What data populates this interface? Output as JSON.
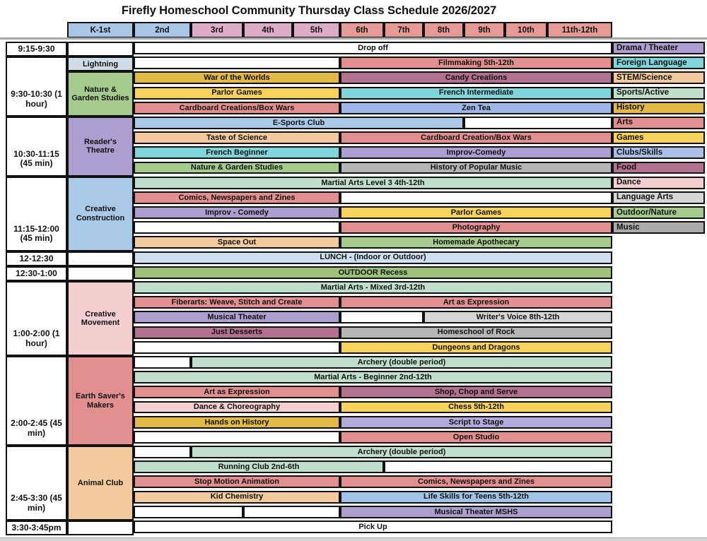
{
  "title": "Firefly Homeschool Community Thursday Class Schedule 2026/2027",
  "colors": {
    "white": "#ffffff",
    "salmon": "#e28f8f",
    "plum": "#b1718f",
    "gold": "#e3ba45",
    "yellow": "#f8d35b",
    "cyan": "#7fd5d9",
    "periwinkle": "#9fb7e8",
    "clubsblue": "#a9bfe8",
    "lightblue": "#aac8e8",
    "skyblue": "#a0c3e8",
    "paleblue": "#cfdff2",
    "mint": "#bfdecb",
    "green": "#a6cb8e",
    "recessgreen": "#9dc17a",
    "purple": "#ad9ed0",
    "lavender": "#b3aadb",
    "peach": "#f3c99e",
    "pink": "#f4cfcf",
    "lightgray": "#d6d6d6",
    "gray": "#b5b5b5",
    "musicgray": "#ababab",
    "lightning": "#cfdde8",
    "headerblue": "#a9c6e6",
    "headerpink": "#ddadc7",
    "headersalmon": "#e69a96"
  },
  "grade_header": [
    {
      "t": "K-1st",
      "k": "headerblue"
    },
    {
      "t": "2nd",
      "k": "headerblue"
    },
    {
      "t": "3rd",
      "k": "headerpink"
    },
    {
      "t": "4th",
      "k": "headerpink"
    },
    {
      "t": "5th",
      "k": "headerpink"
    },
    {
      "t": "6th",
      "k": "headersalmon"
    },
    {
      "t": "7th",
      "k": "headersalmon"
    },
    {
      "t": "8th",
      "k": "headersalmon"
    },
    {
      "t": "9th",
      "k": "headersalmon"
    },
    {
      "t": "10th",
      "k": "headersalmon"
    },
    {
      "t": "11th-12th",
      "k": "headersalmon"
    }
  ],
  "time_column": [
    {
      "t": "9:15-9:30",
      "r": 1
    },
    {
      "t": "9:30-10:30 (1 hour)",
      "r": 2,
      "rs": 4
    },
    {
      "t": "10:30-11:15 (45 min)",
      "r": 6,
      "rs": 4
    },
    {
      "t": "11:15-12:00 (45 min)",
      "r": 10,
      "rs": 5
    },
    {
      "t": "12-12:30",
      "r": 15
    },
    {
      "t": "12:30-1:00",
      "r": 16
    },
    {
      "t": "1:00-2:00 (1 hour)",
      "r": 17,
      "rs": 5
    },
    {
      "t": "2:00-2:45 (45 min)",
      "r": 22,
      "rs": 6
    },
    {
      "t": "2:45-3:30 (45 min)",
      "r": 28,
      "rs": 5
    },
    {
      "t": "3:30-3:45pm",
      "r": 33
    }
  ],
  "k1_column": [
    {
      "t": "",
      "r": 1,
      "k": "white"
    },
    {
      "t": "Lightning",
      "r": 2,
      "k": "lightning"
    },
    {
      "t": "Nature & Garden Studies",
      "r": 3,
      "rs": 3,
      "k": "green"
    },
    {
      "t": "Reader's Theatre",
      "r": 6,
      "rs": 4,
      "k": "purple"
    },
    {
      "t": "Creative Construction",
      "r": 10,
      "rs": 5,
      "k": "lightblue"
    },
    {
      "t": "",
      "r": 15,
      "k": "white"
    },
    {
      "t": "",
      "r": 16,
      "k": "white"
    },
    {
      "t": "Creative Movement",
      "r": 17,
      "rs": 5,
      "k": "pink"
    },
    {
      "t": "Earth Saver's Makers",
      "r": 22,
      "rs": 6,
      "k": "salmon"
    },
    {
      "t": "Animal Club",
      "r": 28,
      "rs": 5,
      "k": "peach"
    },
    {
      "t": "",
      "r": 33,
      "k": "white"
    }
  ],
  "classes": [
    {
      "t": "Drop off",
      "r": 1,
      "c": 3,
      "s": 10,
      "k": "white"
    },
    {
      "t": "",
      "r": 2,
      "c": 3,
      "s": 4,
      "k": "white"
    },
    {
      "t": "Filmmaking 5th-12th",
      "r": 2,
      "c": 7,
      "s": 6,
      "k": "salmon"
    },
    {
      "t": "War of the Worlds",
      "r": 3,
      "c": 3,
      "s": 4,
      "k": "gold"
    },
    {
      "t": "Candy Creations",
      "r": 3,
      "c": 7,
      "s": 6,
      "k": "plum"
    },
    {
      "t": "Parlor Games",
      "r": 4,
      "c": 3,
      "s": 4,
      "k": "yellow"
    },
    {
      "t": "French Intermediate",
      "r": 4,
      "c": 7,
      "s": 6,
      "k": "cyan"
    },
    {
      "t": "Cardboard Creations/Box Wars",
      "r": 5,
      "c": 3,
      "s": 4,
      "k": "salmon"
    },
    {
      "t": "Zen Tea",
      "r": 5,
      "c": 7,
      "s": 6,
      "k": "periwinkle"
    },
    {
      "t": "E-Sports Club",
      "r": 6,
      "c": 3,
      "s": 7,
      "k": "lightblue"
    },
    {
      "t": "",
      "r": 6,
      "c": 10,
      "s": 3,
      "k": "white"
    },
    {
      "t": "Taste of Science",
      "r": 7,
      "c": 3,
      "s": 4,
      "k": "peach"
    },
    {
      "t": "Cardboard Creation/Box Wars",
      "r": 7,
      "c": 7,
      "s": 6,
      "k": "salmon"
    },
    {
      "t": "French Beginner",
      "r": 8,
      "c": 3,
      "s": 4,
      "k": "cyan"
    },
    {
      "t": "Improv-Comedy",
      "r": 8,
      "c": 7,
      "s": 6,
      "k": "purple"
    },
    {
      "t": "Nature & Garden Studies",
      "r": 9,
      "c": 3,
      "s": 4,
      "k": "green"
    },
    {
      "t": "History of Popular Music",
      "r": 9,
      "c": 7,
      "s": 6,
      "k": "gray"
    },
    {
      "t": "Martial Arts Level 3 4th-12th",
      "r": 10,
      "c": 3,
      "s": 10,
      "k": "mint"
    },
    {
      "t": "Comics, Newspapers and Zines",
      "r": 11,
      "c": 3,
      "s": 4,
      "k": "salmon"
    },
    {
      "t": "",
      "r": 11,
      "c": 7,
      "s": 6,
      "k": "white"
    },
    {
      "t": "Improv - Comedy",
      "r": 12,
      "c": 3,
      "s": 4,
      "k": "purple"
    },
    {
      "t": "Parlor Games",
      "r": 12,
      "c": 7,
      "s": 6,
      "k": "yellow"
    },
    {
      "t": "",
      "r": 13,
      "c": 3,
      "s": 4,
      "k": "white"
    },
    {
      "t": "Photography",
      "r": 13,
      "c": 7,
      "s": 6,
      "k": "salmon"
    },
    {
      "t": "Space Out",
      "r": 14,
      "c": 3,
      "s": 4,
      "k": "peach"
    },
    {
      "t": "Homemade Apothecary",
      "r": 14,
      "c": 7,
      "s": 6,
      "k": "green"
    },
    {
      "t": "LUNCH - (Indoor or Outdoor)",
      "r": 15,
      "c": 3,
      "s": 10,
      "k": "paleblue"
    },
    {
      "t": "OUTDOOR Recess",
      "r": 16,
      "c": 3,
      "s": 10,
      "k": "recessgreen"
    },
    {
      "t": "Martial Arts - Mixed 3rd-12th",
      "r": 17,
      "c": 3,
      "s": 10,
      "k": "mint"
    },
    {
      "t": "Fiberarts: Weave, Stitch and Create",
      "r": 18,
      "c": 3,
      "s": 4,
      "k": "salmon"
    },
    {
      "t": "Art as Expression",
      "r": 18,
      "c": 7,
      "s": 6,
      "k": "salmon"
    },
    {
      "t": "Musical Theater",
      "r": 19,
      "c": 3,
      "s": 4,
      "k": "purple"
    },
    {
      "t": "",
      "r": 19,
      "c": 7,
      "s": 2,
      "k": "white"
    },
    {
      "t": "Writer's Voice 8th-12th",
      "r": 19,
      "c": 9,
      "s": 4,
      "k": "lightgray"
    },
    {
      "t": "Just Desserts",
      "r": 20,
      "c": 3,
      "s": 4,
      "k": "plum"
    },
    {
      "t": "Homeschool of Rock",
      "r": 20,
      "c": 7,
      "s": 6,
      "k": "gray"
    },
    {
      "t": "",
      "r": 21,
      "c": 3,
      "s": 4,
      "k": "white"
    },
    {
      "t": "Dungeons and Dragons",
      "r": 21,
      "c": 7,
      "s": 6,
      "k": "yellow"
    },
    {
      "t": "",
      "r": 22,
      "c": 3,
      "s": 1,
      "k": "white"
    },
    {
      "t": "Archery (double period)",
      "r": 22,
      "c": 4,
      "s": 9,
      "k": "mint"
    },
    {
      "t": "Martial Arts - Beginner 2nd-12th",
      "r": 23,
      "c": 3,
      "s": 10,
      "k": "mint"
    },
    {
      "t": "Art as Expression",
      "r": 24,
      "c": 3,
      "s": 4,
      "k": "salmon"
    },
    {
      "t": "Shop, Chop and Serve",
      "r": 24,
      "c": 7,
      "s": 6,
      "k": "plum"
    },
    {
      "t": "Dance & Choreography",
      "r": 25,
      "c": 3,
      "s": 4,
      "k": "pink"
    },
    {
      "t": "Chess 5th-12th",
      "r": 25,
      "c": 7,
      "s": 6,
      "k": "yellow"
    },
    {
      "t": "Hands on History",
      "r": 26,
      "c": 3,
      "s": 4,
      "k": "gold"
    },
    {
      "t": "Script to Stage",
      "r": 26,
      "c": 7,
      "s": 6,
      "k": "lavender"
    },
    {
      "t": "",
      "r": 27,
      "c": 3,
      "s": 4,
      "k": "white"
    },
    {
      "t": "Open Studio",
      "r": 27,
      "c": 7,
      "s": 6,
      "k": "salmon"
    },
    {
      "t": "",
      "r": 28,
      "c": 3,
      "s": 1,
      "k": "white"
    },
    {
      "t": "Archery (double period)",
      "r": 28,
      "c": 4,
      "s": 9,
      "k": "mint"
    },
    {
      "t": "Running Club 2nd-6th",
      "r": 29,
      "c": 3,
      "s": 5,
      "k": "mint"
    },
    {
      "t": "",
      "r": 29,
      "c": 8,
      "s": 5,
      "k": "white"
    },
    {
      "t": "Stop Motion Animation",
      "r": 30,
      "c": 3,
      "s": 4,
      "k": "salmon"
    },
    {
      "t": "Comics, Newspapers and Zines",
      "r": 30,
      "c": 7,
      "s": 6,
      "k": "salmon"
    },
    {
      "t": "Kid Chemistry",
      "r": 31,
      "c": 3,
      "s": 4,
      "k": "peach"
    },
    {
      "t": "Life Skills for Teens 5th-12th",
      "r": 31,
      "c": 7,
      "s": 6,
      "k": "skyblue"
    },
    {
      "t": "",
      "r": 32,
      "c": 3,
      "s": 2,
      "k": "white"
    },
    {
      "t": "",
      "r": 32,
      "c": 5,
      "s": 2,
      "k": "white"
    },
    {
      "t": "Musical Theater MSHS",
      "r": 32,
      "c": 7,
      "s": 6,
      "k": "purple"
    },
    {
      "t": "Pick Up",
      "r": 33,
      "c": 3,
      "s": 10,
      "k": "white"
    }
  ],
  "legend": [
    {
      "t": "Drama / Theater",
      "k": "purple"
    },
    {
      "t": "Foreign Language",
      "k": "cyan"
    },
    {
      "t": "STEM/Science",
      "k": "peach"
    },
    {
      "t": "Sports/Active",
      "k": "mint"
    },
    {
      "t": "History",
      "k": "gold"
    },
    {
      "t": "Arts",
      "k": "salmon"
    },
    {
      "t": "Games",
      "k": "yellow"
    },
    {
      "t": "Clubs/Skills",
      "k": "clubsblue"
    },
    {
      "t": "Food",
      "k": "plum"
    },
    {
      "t": "Dance",
      "k": "pink"
    },
    {
      "t": "Language Arts",
      "k": "lightgray"
    },
    {
      "t": "Outdoor/Nature",
      "k": "green"
    },
    {
      "t": "Music",
      "k": "musicgray"
    }
  ]
}
